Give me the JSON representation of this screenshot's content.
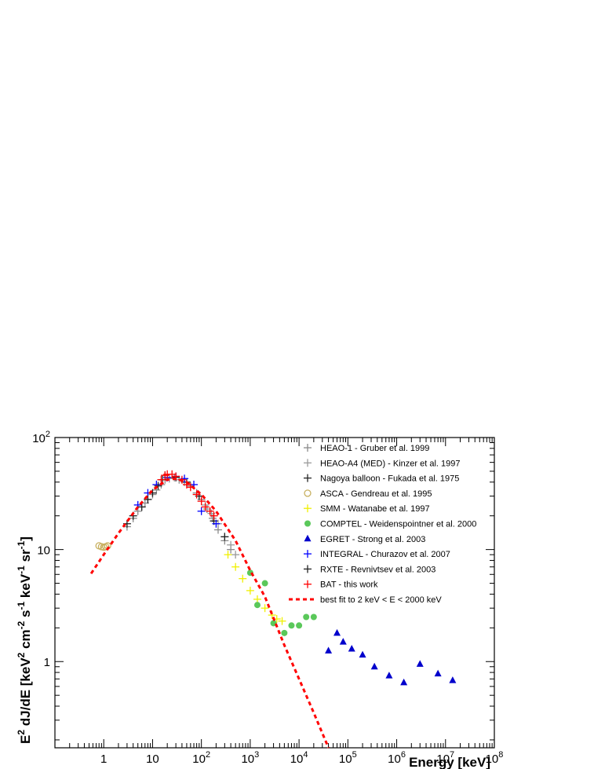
{
  "chart_data": {
    "type": "scatter",
    "title": "",
    "xlabel": "Energy [keV]",
    "ylabel_parts": [
      "E",
      "2",
      " dJ/dE [keV",
      "2",
      " cm",
      "-2",
      " s",
      "-1",
      " keV",
      "-1",
      " sr",
      "-1",
      "]"
    ],
    "x_scale": "log",
    "y_scale": "log",
    "xlim": [
      0.1,
      100000000
    ],
    "ylim": [
      0.17,
      100
    ],
    "x_tick_labels": [
      {
        "base": "",
        "exp": "",
        "text": "1",
        "value": 1
      },
      {
        "base": "",
        "exp": "",
        "text": "10",
        "value": 10
      },
      {
        "base": "10",
        "exp": "2",
        "text": "",
        "value": 100
      },
      {
        "base": "10",
        "exp": "3",
        "text": "",
        "value": 1000
      },
      {
        "base": "10",
        "exp": "4",
        "text": "",
        "value": 10000
      },
      {
        "base": "10",
        "exp": "5",
        "text": "",
        "value": 100000
      },
      {
        "base": "10",
        "exp": "6",
        "text": "",
        "value": 1000000
      },
      {
        "base": "10",
        "exp": "7",
        "text": "",
        "value": 10000000
      },
      {
        "base": "10",
        "exp": "8",
        "text": "",
        "value": 100000000
      }
    ],
    "y_tick_labels": [
      {
        "base": "",
        "exp": "",
        "text": "1",
        "value": 1
      },
      {
        "base": "",
        "exp": "",
        "text": "10",
        "value": 10
      },
      {
        "base": "10",
        "exp": "2",
        "text": "",
        "value": 100
      }
    ],
    "legend_position": "top-right",
    "series": [
      {
        "name": "HEAO-1 - Gruber et al. 1999",
        "color": "#8a8a8a",
        "marker": "cross",
        "points": [
          [
            3,
            16
          ],
          [
            4,
            19
          ],
          [
            5,
            22
          ],
          [
            6,
            24
          ],
          [
            7,
            26
          ],
          [
            8,
            28
          ],
          [
            10,
            31
          ],
          [
            12,
            34
          ],
          [
            15,
            38
          ],
          [
            18,
            42
          ],
          [
            22,
            43
          ],
          [
            28,
            44
          ],
          [
            35,
            42
          ],
          [
            45,
            40
          ],
          [
            60,
            37
          ],
          [
            80,
            32
          ],
          [
            100,
            28
          ],
          [
            130,
            23
          ],
          [
            170,
            19
          ],
          [
            220,
            15
          ],
          [
            300,
            12
          ],
          [
            400,
            10
          ]
        ]
      },
      {
        "name": "HEAO-A4 (MED) - Kinzer et al. 1997",
        "color": "#9a9a9a",
        "marker": "cross",
        "points": [
          [
            90,
            30
          ],
          [
            120,
            25
          ],
          [
            160,
            21
          ],
          [
            220,
            17
          ],
          [
            300,
            13
          ],
          [
            400,
            11
          ],
          [
            500,
            9
          ]
        ]
      },
      {
        "name": "Nagoya balloon - Fukada et al. 1975",
        "color": "#222222",
        "marker": "cross",
        "points": [
          [
            30,
            44
          ],
          [
            50,
            40
          ],
          [
            90,
            30
          ],
          [
            180,
            18
          ],
          [
            300,
            13
          ]
        ]
      },
      {
        "name": "ASCA - Gendreau et al. 1995",
        "color": "#c8b060",
        "marker": "open-circle",
        "points": [
          [
            0.8,
            10.8
          ],
          [
            0.9,
            10.6
          ],
          [
            1.0,
            10.5
          ],
          [
            1.1,
            10.6
          ],
          [
            1.2,
            10.8
          ]
        ]
      },
      {
        "name": "SMM - Watanabe et al. 1997",
        "color": "#f0f000",
        "marker": "cross",
        "points": [
          [
            350,
            9
          ],
          [
            500,
            7
          ],
          [
            700,
            5.5
          ],
          [
            1000,
            4.3
          ],
          [
            1400,
            3.6
          ],
          [
            2000,
            3.0
          ],
          [
            2800,
            2.6
          ],
          [
            3500,
            2.4
          ],
          [
            4500,
            2.3
          ]
        ]
      },
      {
        "name": "COMPTEL - Weidenspointner et al. 2000",
        "color": "#5ac85a",
        "marker": "filled-circle",
        "points": [
          [
            1000,
            6.2
          ],
          [
            1400,
            3.2
          ],
          [
            2000,
            5.0
          ],
          [
            3000,
            2.2
          ],
          [
            5000,
            1.8
          ],
          [
            7000,
            2.1
          ],
          [
            10000,
            2.1
          ],
          [
            14000,
            2.5
          ],
          [
            20000,
            2.5
          ]
        ]
      },
      {
        "name": "EGRET - Strong et al. 2003",
        "color": "#0000cc",
        "marker": "triangle",
        "points": [
          [
            40000,
            1.25
          ],
          [
            60000,
            1.8
          ],
          [
            80000,
            1.5
          ],
          [
            120000,
            1.3
          ],
          [
            200000,
            1.15
          ],
          [
            350000,
            0.9
          ],
          [
            700000,
            0.75
          ],
          [
            1400000,
            0.65
          ],
          [
            3000000,
            0.95
          ],
          [
            7000000,
            0.78
          ],
          [
            14000000,
            0.68
          ]
        ]
      },
      {
        "name": "INTEGRAL - Churazov et al. 2007",
        "color": "#0000ff",
        "marker": "cross",
        "points": [
          [
            5,
            25
          ],
          [
            8,
            32
          ],
          [
            12,
            38
          ],
          [
            20,
            44
          ],
          [
            30,
            45
          ],
          [
            45,
            43
          ],
          [
            70,
            38
          ],
          [
            100,
            22
          ],
          [
            200,
            17
          ]
        ]
      },
      {
        "name": "RXTE - Revnivtsev et al. 2003",
        "color": "#222222",
        "marker": "cross",
        "points": [
          [
            3,
            17
          ],
          [
            4,
            20
          ],
          [
            6,
            24
          ],
          [
            8,
            28
          ],
          [
            10,
            32
          ],
          [
            13,
            37
          ],
          [
            16,
            42
          ],
          [
            18,
            46
          ]
        ]
      },
      {
        "name": "BAT - this work",
        "color": "#ff0000",
        "marker": "cross",
        "points": [
          [
            15,
            42
          ],
          [
            18,
            46
          ],
          [
            20,
            47
          ],
          [
            25,
            47
          ],
          [
            30,
            45
          ],
          [
            40,
            42
          ],
          [
            50,
            38
          ],
          [
            60,
            36
          ],
          [
            80,
            31
          ],
          [
            100,
            27
          ],
          [
            120,
            24
          ],
          [
            150,
            22
          ],
          [
            180,
            20
          ]
        ]
      },
      {
        "name": "best fit to 2 keV < E < 2000 keV",
        "color": "#ff0000",
        "marker": "dashed-line",
        "points": [
          [
            0.55,
            6.1
          ],
          [
            1,
            9
          ],
          [
            2,
            14
          ],
          [
            5,
            24
          ],
          [
            10,
            34
          ],
          [
            20,
            42
          ],
          [
            30,
            43
          ],
          [
            50,
            40
          ],
          [
            100,
            31
          ],
          [
            200,
            22
          ],
          [
            500,
            12
          ],
          [
            1000,
            6.5
          ],
          [
            2000,
            3.8
          ],
          [
            5000,
            1.4
          ],
          [
            10000,
            0.7
          ],
          [
            20000,
            0.35
          ],
          [
            40000,
            0.17
          ]
        ]
      }
    ]
  }
}
